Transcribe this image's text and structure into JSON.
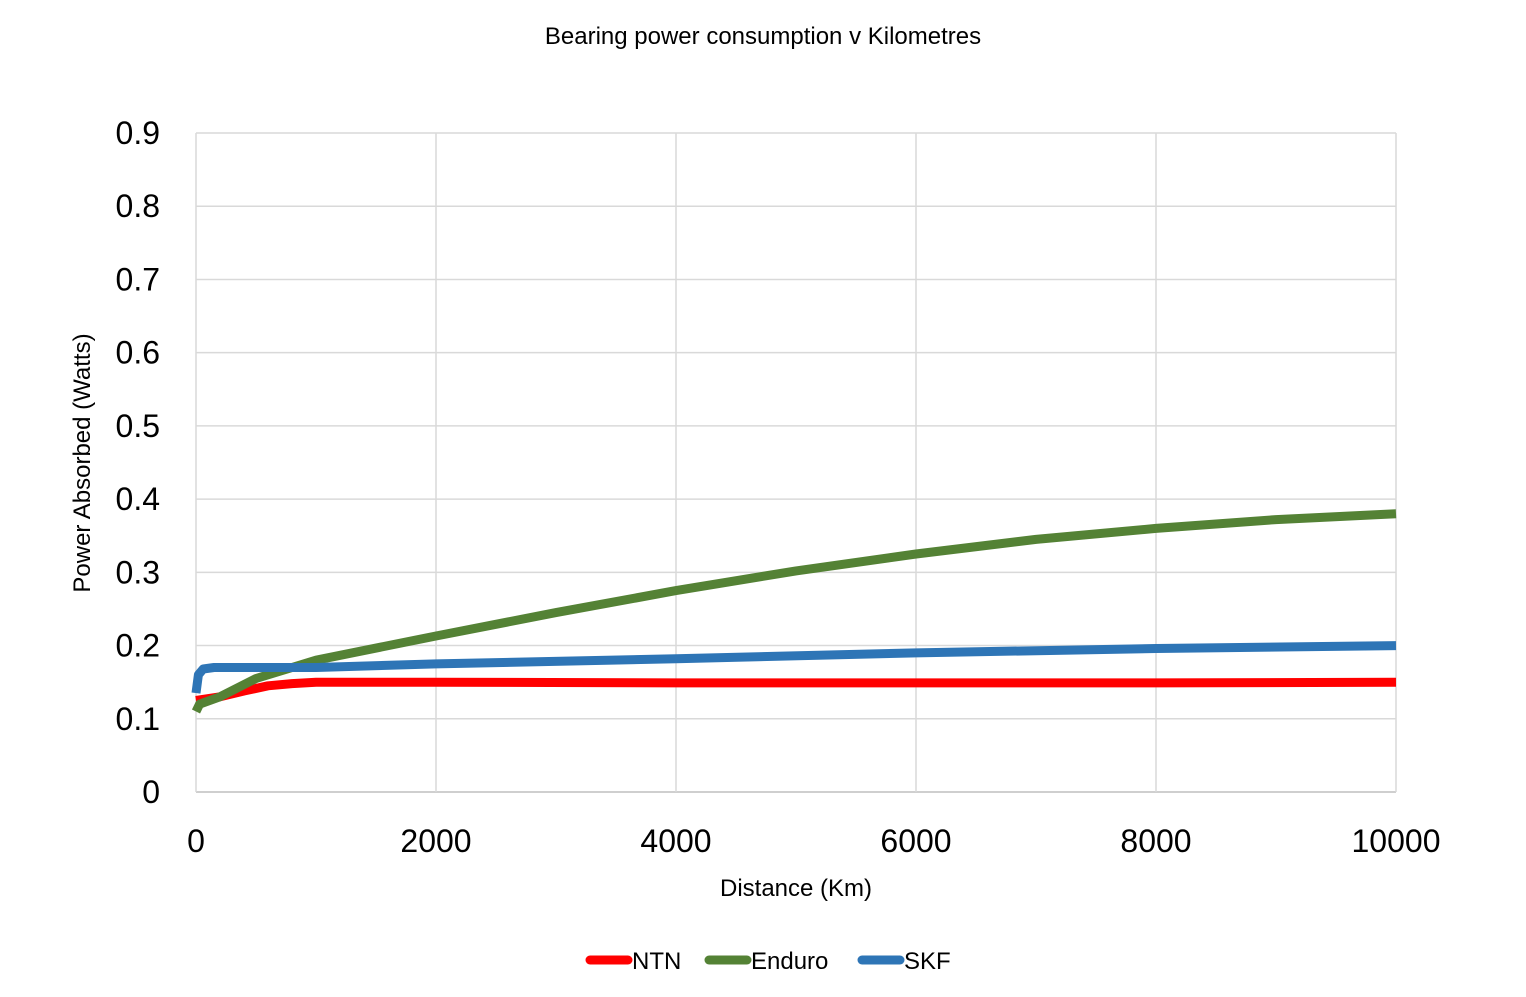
{
  "chart_data": {
    "type": "line",
    "title": "Bearing power consumption v Kilometres",
    "xlabel": "Distance (Km)",
    "ylabel": "Power Absorbed (Watts)",
    "xlim": [
      0,
      10000
    ],
    "ylim": [
      0,
      0.9
    ],
    "xticks": [
      0,
      2000,
      4000,
      6000,
      8000,
      10000
    ],
    "xtick_labels": [
      "0",
      "2000",
      "4000",
      "6000",
      "8000",
      "10000"
    ],
    "yticks": [
      0,
      0.1,
      0.2,
      0.3,
      0.4,
      0.5,
      0.6,
      0.7,
      0.8,
      0.9
    ],
    "ytick_labels": [
      "0",
      "0.1",
      "0.2",
      "0.3",
      "0.4",
      "0.5",
      "0.6",
      "0.7",
      "0.8",
      "0.9"
    ],
    "grid": true,
    "legend_position": "bottom",
    "series": [
      {
        "name": "NTN",
        "color": "#ff0000",
        "points": [
          [
            0,
            0.125
          ],
          [
            200,
            0.13
          ],
          [
            400,
            0.138
          ],
          [
            600,
            0.145
          ],
          [
            800,
            0.148
          ],
          [
            1000,
            0.15
          ],
          [
            2000,
            0.15
          ],
          [
            4000,
            0.149
          ],
          [
            6000,
            0.149
          ],
          [
            8000,
            0.149
          ],
          [
            10000,
            0.15
          ]
        ]
      },
      {
        "name": "Enduro",
        "color": "#548235",
        "points": [
          [
            0,
            0.11
          ],
          [
            30,
            0.12
          ],
          [
            200,
            0.13
          ],
          [
            500,
            0.155
          ],
          [
            1000,
            0.18
          ],
          [
            2000,
            0.213
          ],
          [
            3000,
            0.245
          ],
          [
            4000,
            0.275
          ],
          [
            5000,
            0.302
          ],
          [
            6000,
            0.325
          ],
          [
            7000,
            0.345
          ],
          [
            8000,
            0.36
          ],
          [
            9000,
            0.372
          ],
          [
            10000,
            0.38
          ]
        ]
      },
      {
        "name": "SKF",
        "color": "#2e75b6",
        "points": [
          [
            0,
            0.135
          ],
          [
            20,
            0.16
          ],
          [
            60,
            0.168
          ],
          [
            150,
            0.17
          ],
          [
            1000,
            0.17
          ],
          [
            2000,
            0.175
          ],
          [
            4000,
            0.182
          ],
          [
            6000,
            0.19
          ],
          [
            8000,
            0.196
          ],
          [
            10000,
            0.2
          ]
        ]
      }
    ]
  }
}
